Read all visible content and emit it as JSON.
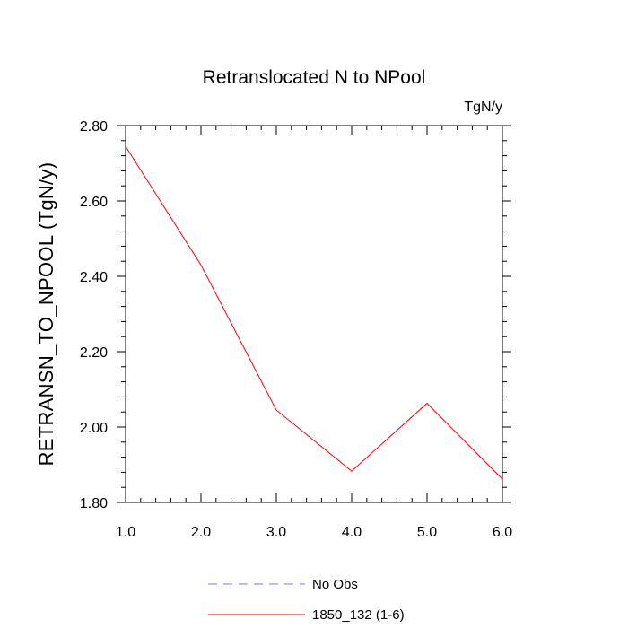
{
  "chart_data": {
    "type": "line",
    "title": "Retranslocated N to NPool",
    "units_label": "TgN/y",
    "xlabel": "",
    "ylabel": "RETRANSN_TO_NPOOL  (TgN/y)",
    "xlim": [
      1.0,
      6.0
    ],
    "ylim": [
      1.8,
      2.8
    ],
    "x_ticks": [
      1.0,
      2.0,
      3.0,
      4.0,
      5.0,
      6.0
    ],
    "x_tick_labels": [
      "1.0",
      "2.0",
      "3.0",
      "4.0",
      "5.0",
      "6.0"
    ],
    "y_ticks": [
      1.8,
      2.0,
      2.2,
      2.4,
      2.6,
      2.8
    ],
    "y_tick_labels": [
      "1.80",
      "2.00",
      "2.20",
      "2.40",
      "2.60",
      "2.80"
    ],
    "grid": false,
    "legend_position": "bottom",
    "series": [
      {
        "name": "1850_132 (1-6)",
        "color": "#ff0000",
        "dash": "solid",
        "x": [
          1,
          2,
          3,
          4,
          5,
          6
        ],
        "values": [
          2.745,
          2.43,
          2.045,
          1.883,
          2.063,
          1.862
        ]
      }
    ],
    "legend": [
      {
        "label": "No Obs",
        "color": "#7777ff",
        "dash": "dashed"
      },
      {
        "label": "1850_132 (1-6)",
        "color": "#ff0000",
        "dash": "solid"
      }
    ]
  }
}
